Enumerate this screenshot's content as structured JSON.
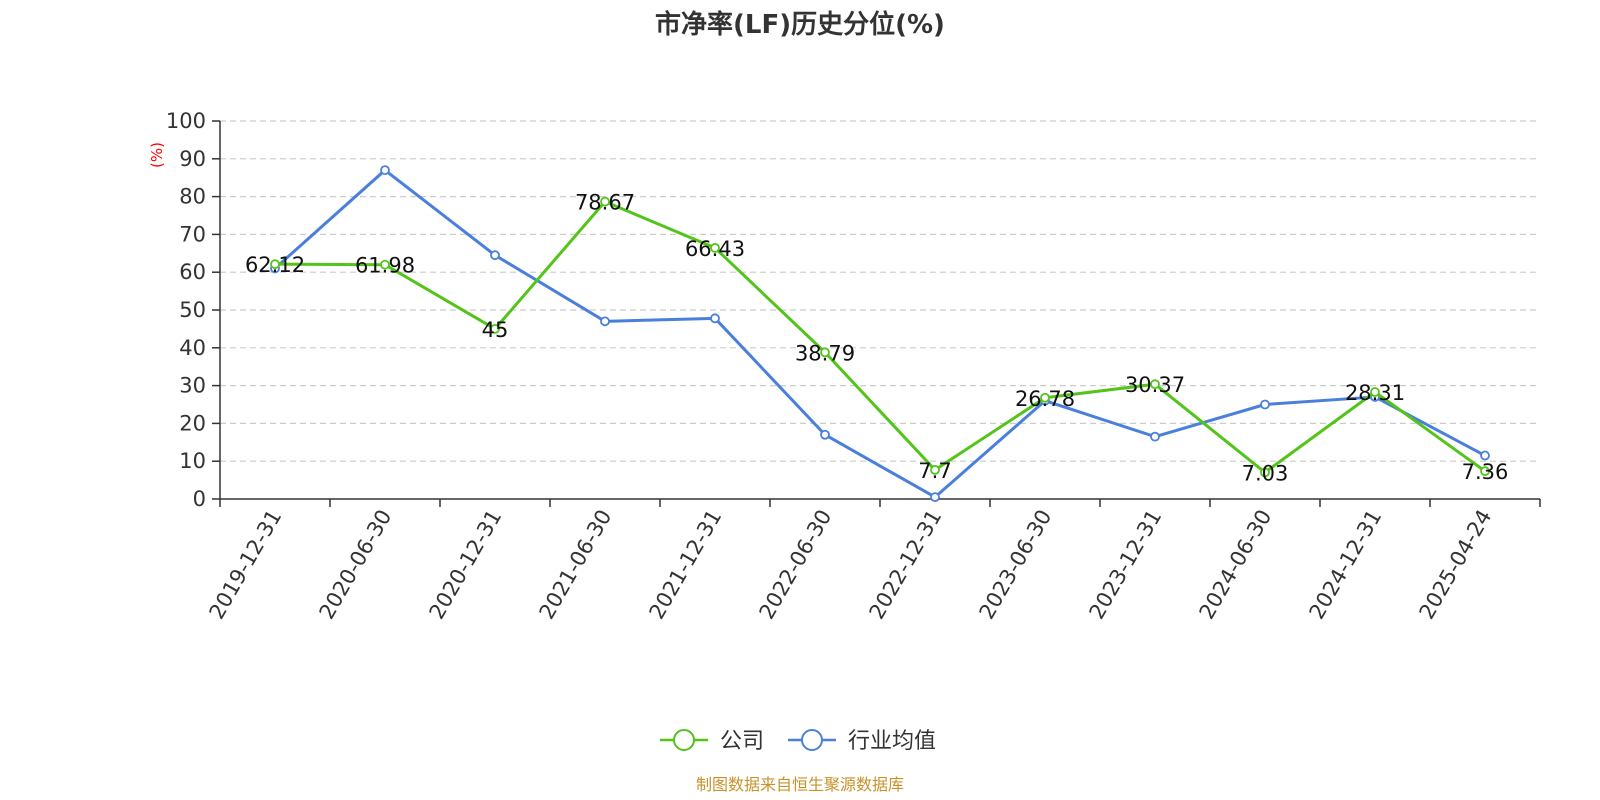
{
  "chart_data": {
    "type": "line",
    "title": "市净率(LF)历史分位(%)",
    "ylabel": "(%)",
    "ylim": [
      0,
      100
    ],
    "yticks": [
      0,
      10,
      20,
      30,
      40,
      50,
      60,
      70,
      80,
      90,
      100
    ],
    "categories": [
      "2019-12-31",
      "2020-06-30",
      "2020-12-31",
      "2021-06-30",
      "2021-12-31",
      "2022-06-30",
      "2022-12-31",
      "2023-06-30",
      "2023-12-31",
      "2024-06-30",
      "2024-12-31",
      "2025-04-24"
    ],
    "grid": true,
    "legend_position": "bottom",
    "series": [
      {
        "name": "公司",
        "color": "#52c41a",
        "values": [
          62.12,
          61.98,
          45,
          78.67,
          66.43,
          38.79,
          7.7,
          26.78,
          30.37,
          7.03,
          28.31,
          7.36
        ],
        "labels": [
          "62.12",
          "61.98",
          "45",
          "78.67",
          "66.43",
          "38.79",
          "7.7",
          "26.78",
          "30.37",
          "7.03",
          "28.31",
          "7.36"
        ]
      },
      {
        "name": "行业均值",
        "color": "#4a7fdc",
        "values": [
          61,
          87,
          64.5,
          47,
          47.8,
          17,
          0.5,
          26,
          16.5,
          25,
          27,
          11.5
        ]
      }
    ],
    "source": "制图数据来自恒生聚源数据库"
  }
}
